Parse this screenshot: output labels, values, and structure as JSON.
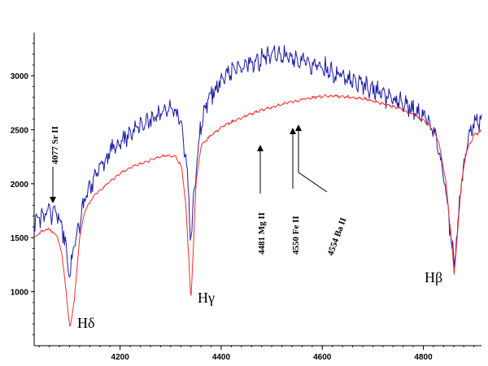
{
  "chart_data": {
    "type": "line",
    "title": "",
    "xlabel": "",
    "ylabel": "",
    "xlim": [
      4030,
      4915
    ],
    "ylim": [
      500,
      3400
    ],
    "x_ticks": [
      4200,
      4400,
      4600,
      4800
    ],
    "y_ticks": [
      1000,
      1500,
      2000,
      2500,
      3000
    ],
    "grid": false,
    "series": [
      {
        "color": "#1a1aa6",
        "points": [
          [
            4030,
            1660
          ],
          [
            4045,
            1700
          ],
          [
            4060,
            1750
          ],
          [
            4075,
            1700
          ],
          [
            4085,
            1600
          ],
          [
            4093,
            1400
          ],
          [
            4101,
            1150
          ],
          [
            4110,
            1450
          ],
          [
            4125,
            1750
          ],
          [
            4140,
            1980
          ],
          [
            4160,
            2150
          ],
          [
            4180,
            2300
          ],
          [
            4200,
            2400
          ],
          [
            4220,
            2450
          ],
          [
            4240,
            2550
          ],
          [
            4260,
            2600
          ],
          [
            4280,
            2650
          ],
          [
            4300,
            2700
          ],
          [
            4315,
            2650
          ],
          [
            4325,
            2450
          ],
          [
            4335,
            2000
          ],
          [
            4340,
            1460
          ],
          [
            4346,
            1900
          ],
          [
            4358,
            2500
          ],
          [
            4375,
            2800
          ],
          [
            4400,
            2950
          ],
          [
            4425,
            3050
          ],
          [
            4450,
            3100
          ],
          [
            4475,
            3150
          ],
          [
            4500,
            3200
          ],
          [
            4525,
            3180
          ],
          [
            4550,
            3150
          ],
          [
            4575,
            3100
          ],
          [
            4600,
            3070
          ],
          [
            4625,
            3020
          ],
          [
            4650,
            2970
          ],
          [
            4675,
            2920
          ],
          [
            4700,
            2870
          ],
          [
            4725,
            2820
          ],
          [
            4750,
            2750
          ],
          [
            4775,
            2700
          ],
          [
            4800,
            2650
          ],
          [
            4820,
            2500
          ],
          [
            4835,
            2200
          ],
          [
            4848,
            1800
          ],
          [
            4857,
            1400
          ],
          [
            4861,
            1250
          ],
          [
            4866,
            1500
          ],
          [
            4875,
            2000
          ],
          [
            4888,
            2400
          ],
          [
            4900,
            2550
          ],
          [
            4915,
            2600
          ]
        ]
      },
      {
        "color": "#ff2a2a",
        "points": [
          [
            4030,
            1500
          ],
          [
            4045,
            1560
          ],
          [
            4060,
            1580
          ],
          [
            4075,
            1520
          ],
          [
            4085,
            1350
          ],
          [
            4093,
            1000
          ],
          [
            4101,
            650
          ],
          [
            4110,
            950
          ],
          [
            4120,
            1500
          ],
          [
            4130,
            1750
          ],
          [
            4150,
            1900
          ],
          [
            4175,
            2000
          ],
          [
            4200,
            2100
          ],
          [
            4230,
            2170
          ],
          [
            4260,
            2220
          ],
          [
            4290,
            2260
          ],
          [
            4310,
            2250
          ],
          [
            4322,
            2150
          ],
          [
            4330,
            1800
          ],
          [
            4336,
            1300
          ],
          [
            4340,
            900
          ],
          [
            4344,
            1300
          ],
          [
            4350,
            2000
          ],
          [
            4360,
            2350
          ],
          [
            4380,
            2450
          ],
          [
            4400,
            2520
          ],
          [
            4425,
            2580
          ],
          [
            4450,
            2630
          ],
          [
            4480,
            2680
          ],
          [
            4510,
            2720
          ],
          [
            4540,
            2760
          ],
          [
            4570,
            2790
          ],
          [
            4600,
            2810
          ],
          [
            4630,
            2810
          ],
          [
            4660,
            2800
          ],
          [
            4690,
            2780
          ],
          [
            4720,
            2740
          ],
          [
            4750,
            2700
          ],
          [
            4780,
            2640
          ],
          [
            4810,
            2560
          ],
          [
            4830,
            2400
          ],
          [
            4845,
            2000
          ],
          [
            4855,
            1500
          ],
          [
            4861,
            1170
          ],
          [
            4867,
            1500
          ],
          [
            4875,
            2000
          ],
          [
            4885,
            2300
          ],
          [
            4900,
            2450
          ],
          [
            4915,
            2490
          ]
        ]
      }
    ],
    "annotations": [
      {
        "text": "4077  Sr II",
        "rotation": -90,
        "arrow": "down"
      },
      {
        "text": "4481  Mg II",
        "rotation": -90,
        "arrow": "up"
      },
      {
        "text": "4550  Fe II",
        "rotation": -90,
        "arrow": "up"
      },
      {
        "text": "4554  Ba II",
        "rotation": -70,
        "arrow": "up"
      }
    ],
    "line_labels": [
      "Hδ",
      "Hγ",
      "Hβ"
    ]
  }
}
